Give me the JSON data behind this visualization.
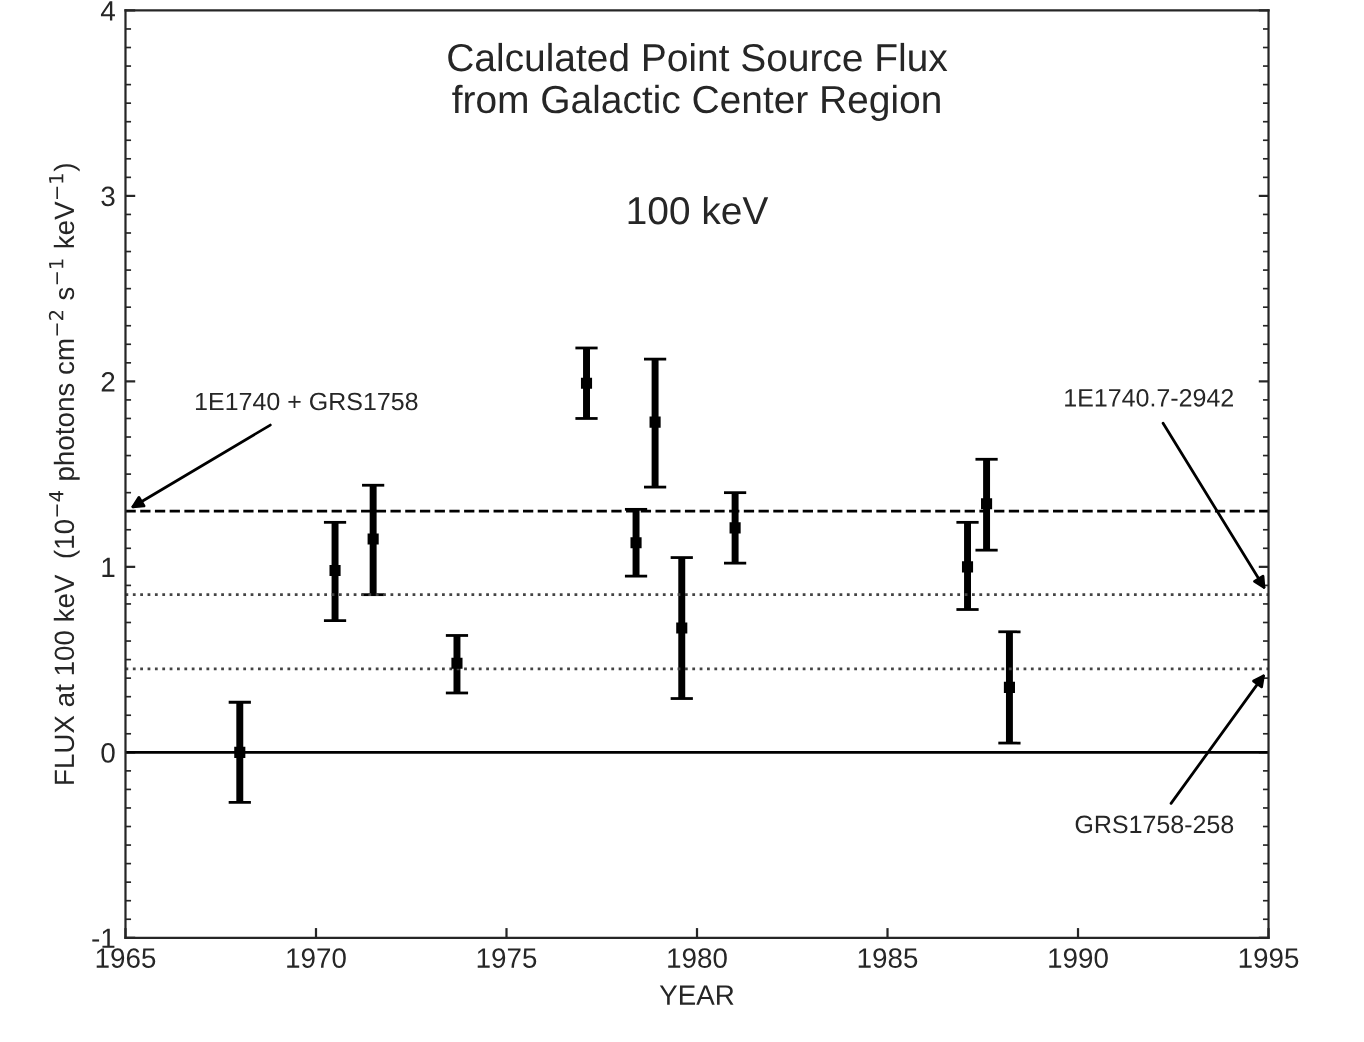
{
  "chart_data": {
    "type": "scatter",
    "title": "Calculated Point Source Flux\nfrom Galactic Center Region",
    "subtitle": "100 keV",
    "xlabel": "YEAR",
    "ylabel": "FLUX at 100 keV  (10$^{−4}$ photons cm$^{−2}$ s$^{−1}$ keV$^{−1}$)",
    "x": [
      1968.0,
      1970.5,
      1971.5,
      1973.7,
      1977.1,
      1978.4,
      1978.9,
      1979.6,
      1981.0,
      1987.1,
      1987.6,
      1988.2
    ],
    "series": [
      {
        "color": "#000000",
        "values": [
          0.0,
          0.98,
          1.15,
          0.48,
          1.99,
          1.13,
          1.78,
          0.67,
          1.21,
          1.0,
          1.34,
          0.35
        ],
        "errors": [
          [
            -0.27,
            0.27
          ],
          [
            0.71,
            1.24
          ],
          [
            0.85,
            1.44
          ],
          [
            0.32,
            0.63
          ],
          [
            1.8,
            2.18
          ],
          [
            0.95,
            1.31
          ],
          [
            1.43,
            2.12
          ],
          [
            0.29,
            1.05
          ],
          [
            1.02,
            1.4
          ],
          [
            0.77,
            1.24
          ],
          [
            1.09,
            1.58
          ],
          [
            0.05,
            0.65
          ]
        ]
      }
    ],
    "marker": "square",
    "xlim": [
      1965,
      1995
    ],
    "xticks": [
      1965,
      1970,
      1975,
      1980,
      1985,
      1990,
      1995
    ],
    "ylim": [
      -1,
      4
    ],
    "yticks": [
      -1,
      0,
      1,
      2,
      3,
      4
    ],
    "ref_lines": [
      {
        "axis": "y",
        "value": 1.3,
        "label": "1E1740 + GRS1758",
        "line_style": "dashed",
        "color": "#000000"
      },
      {
        "axis": "y",
        "value": 0.85,
        "label": "1E1740.7-2942",
        "line_style": "dotted",
        "color": "#444444"
      },
      {
        "axis": "y",
        "value": 0.45,
        "label": "GRS1758-258",
        "line_style": "dotted",
        "color": "#444444"
      },
      {
        "axis": "y",
        "value": 0,
        "line_style": "solid",
        "color": "#000000"
      }
    ],
    "grid": false,
    "legend": false
  }
}
